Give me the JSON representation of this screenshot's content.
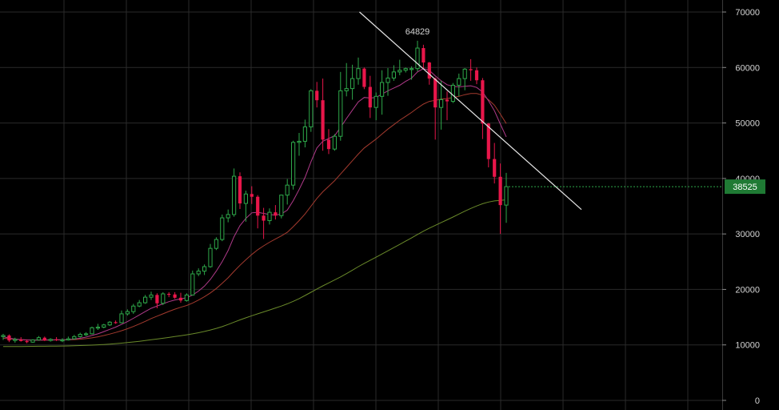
{
  "chart_data": {
    "type": "candlestick",
    "ylim": [
      0,
      70000
    ],
    "y_ticks": [
      "70000",
      "60000",
      "50000",
      "40000",
      "30000",
      "20000",
      "10000",
      "0"
    ],
    "grid": true,
    "y_axis_position": "right",
    "peak_label": "64829",
    "last_price_label": "38525",
    "last_price": 38525,
    "colors": {
      "background": "#000000",
      "grid": "#2a2a2a",
      "up": "#2ea84a",
      "down": "#e8164a",
      "price_tag": "#1f7a34",
      "ma_fast": "#b03a8a",
      "ma_mid": "#a33a2e",
      "ma_slow": "#6a8a2a",
      "trendline": "#e6e6e6"
    },
    "candles": [
      [
        11500,
        12000,
        10900,
        11700
      ],
      [
        11700,
        11900,
        10500,
        10800
      ],
      [
        10800,
        11300,
        10400,
        11000
      ],
      [
        11000,
        11400,
        10600,
        10700
      ],
      [
        10700,
        11000,
        10300,
        10500
      ],
      [
        10500,
        11000,
        10400,
        10900
      ],
      [
        10900,
        11600,
        10800,
        11300
      ],
      [
        11300,
        11500,
        10700,
        10800
      ],
      [
        10800,
        11200,
        10600,
        11000
      ],
      [
        11000,
        11400,
        10700,
        10900
      ],
      [
        10900,
        11200,
        10500,
        10900
      ],
      [
        10900,
        11500,
        10800,
        11100
      ],
      [
        11100,
        11800,
        11000,
        11500
      ],
      [
        11500,
        12200,
        11300,
        11900
      ],
      [
        11900,
        12300,
        11600,
        12000
      ],
      [
        12000,
        13300,
        11900,
        13100
      ],
      [
        13100,
        13800,
        12700,
        13200
      ],
      [
        13200,
        13800,
        13000,
        13600
      ],
      [
        13600,
        14300,
        13400,
        14100
      ],
      [
        14100,
        14400,
        13800,
        14000
      ],
      [
        14000,
        16200,
        13900,
        15600
      ],
      [
        15600,
        16400,
        15300,
        16000
      ],
      [
        16000,
        17400,
        15600,
        17000
      ],
      [
        17000,
        18100,
        16800,
        17600
      ],
      [
        17600,
        19000,
        17400,
        18600
      ],
      [
        18600,
        19600,
        18100,
        19000
      ],
      [
        19000,
        19300,
        16600,
        17500
      ],
      [
        17500,
        19500,
        17200,
        19200
      ],
      [
        19200,
        19500,
        18600,
        19100
      ],
      [
        19100,
        19500,
        18300,
        18500
      ],
      [
        18500,
        19400,
        17600,
        18000
      ],
      [
        18000,
        19300,
        17800,
        19000
      ],
      [
        19000,
        23400,
        18900,
        22800
      ],
      [
        22800,
        23800,
        22400,
        23300
      ],
      [
        23300,
        24500,
        22600,
        24100
      ],
      [
        24100,
        28200,
        23900,
        27400
      ],
      [
        27400,
        29400,
        27100,
        29000
      ],
      [
        29000,
        33500,
        28700,
        32900
      ],
      [
        32900,
        34400,
        32100,
        33500
      ],
      [
        33500,
        41800,
        33100,
        40400
      ],
      [
        40400,
        41100,
        34500,
        35500
      ],
      [
        35500,
        37800,
        32200,
        37200
      ],
      [
        37200,
        38600,
        35400,
        36700
      ],
      [
        36700,
        37000,
        31000,
        33300
      ],
      [
        33300,
        34700,
        29100,
        32400
      ],
      [
        32400,
        34600,
        31700,
        33900
      ],
      [
        33900,
        35200,
        32600,
        33300
      ],
      [
        33300,
        37100,
        32800,
        37000
      ],
      [
        37000,
        39900,
        35300,
        38800
      ],
      [
        38800,
        46800,
        38000,
        46500
      ],
      [
        46500,
        48200,
        44100,
        46700
      ],
      [
        46700,
        50600,
        45600,
        49300
      ],
      [
        49300,
        56100,
        48400,
        55800
      ],
      [
        55800,
        57400,
        52800,
        54100
      ],
      [
        54100,
        58000,
        45000,
        47000
      ],
      [
        47000,
        48900,
        44400,
        45300
      ],
      [
        45300,
        48000,
        45000,
        47600
      ],
      [
        47600,
        59200,
        46800,
        55800
      ],
      [
        55800,
        60800,
        54800,
        56200
      ],
      [
        56200,
        60500,
        54200,
        58000
      ],
      [
        58000,
        61800,
        56900,
        59800
      ],
      [
        59800,
        60000,
        56100,
        56500
      ],
      [
        56500,
        58500,
        50900,
        52800
      ],
      [
        52800,
        55500,
        50500,
        54800
      ],
      [
        54800,
        59500,
        51500,
        57300
      ],
      [
        57300,
        59900,
        54900,
        58100
      ],
      [
        58100,
        60400,
        57600,
        59200
      ],
      [
        59200,
        61400,
        58600,
        59500
      ],
      [
        59500,
        60000,
        59100,
        59800
      ],
      [
        59800,
        60200,
        57800,
        59800
      ],
      [
        59800,
        64829,
        59300,
        63500
      ],
      [
        63500,
        64100,
        59800,
        60900
      ],
      [
        60900,
        61000,
        56900,
        58000
      ],
      [
        58000,
        58200,
        47000,
        52800
      ],
      [
        52800,
        57600,
        48800,
        54200
      ],
      [
        54200,
        55700,
        50500,
        53900
      ],
      [
        53900,
        57200,
        53600,
        56800
      ],
      [
        56800,
        58900,
        54800,
        58000
      ],
      [
        58000,
        59900,
        55900,
        59700
      ],
      [
        59700,
        61500,
        57600,
        59500
      ],
      [
        59500,
        60000,
        57000,
        57700
      ],
      [
        57700,
        58100,
        47100,
        49900
      ],
      [
        49900,
        50000,
        42000,
        43500
      ],
      [
        43500,
        46400,
        39100,
        40300
      ],
      [
        40300,
        42700,
        30000,
        35200
      ],
      [
        35200,
        41000,
        32000,
        38525
      ]
    ],
    "ma_fast": [
      11500,
      11200,
      11050,
      10950,
      10900,
      10850,
      10850,
      10900,
      10900,
      10920,
      10930,
      10950,
      11050,
      11200,
      11400,
      11700,
      12000,
      12400,
      12800,
      13200,
      13700,
      14200,
      14800,
      15400,
      16000,
      16600,
      17000,
      17400,
      17800,
      18100,
      18300,
      18500,
      19000,
      19700,
      20600,
      21800,
      23300,
      25000,
      27000,
      29500,
      31500,
      32800,
      33800,
      33900,
      33700,
      33500,
      33400,
      33600,
      34300,
      36000,
      38000,
      40200,
      43000,
      45500,
      46700,
      47200,
      47700,
      49200,
      50800,
      52300,
      53800,
      54600,
      54500,
      54600,
      55200,
      55800,
      56300,
      56800,
      57500,
      58100,
      59200,
      59800,
      59500,
      58500,
      57600,
      56900,
      56600,
      56500,
      56600,
      56700,
      56400,
      55600,
      54000,
      52200,
      49800,
      47500
    ],
    "ma_mid": [
      11200,
      11100,
      11000,
      10950,
      10900,
      10880,
      10870,
      10870,
      10880,
      10890,
      10900,
      10920,
      10960,
      11030,
      11130,
      11270,
      11460,
      11690,
      11950,
      12240,
      12560,
      12920,
      13320,
      13770,
      14250,
      14750,
      15180,
      15600,
      16030,
      16440,
      16780,
      17100,
      17550,
      18080,
      18680,
      19370,
      20170,
      21100,
      22100,
      23250,
      24350,
      25350,
      26300,
      27150,
      27850,
      28500,
      29100,
      29650,
      30300,
      31300,
      32400,
      33600,
      35000,
      36400,
      37600,
      38600,
      39600,
      40800,
      42000,
      43200,
      44400,
      45500,
      46300,
      47100,
      48000,
      48900,
      49700,
      50500,
      51200,
      51900,
      52700,
      53400,
      53900,
      54100,
      54300,
      54400,
      54600,
      54800,
      55100,
      55300,
      55300,
      55000,
      54200,
      53200,
      51600,
      49900
    ],
    "ma_slow": [
      9700,
      9700,
      9710,
      9720,
      9730,
      9740,
      9750,
      9760,
      9770,
      9780,
      9800,
      9820,
      9850,
      9880,
      9920,
      9960,
      10020,
      10080,
      10150,
      10230,
      10320,
      10420,
      10530,
      10650,
      10780,
      10920,
      11060,
      11200,
      11350,
      11500,
      11660,
      11820,
      12000,
      12200,
      12430,
      12680,
      12970,
      13300,
      13680,
      14100,
      14500,
      14880,
      15250,
      15600,
      15950,
      16300,
      16650,
      17000,
      17400,
      17850,
      18350,
      18900,
      19480,
      20080,
      20640,
      21180,
      21700,
      22260,
      22850,
      23470,
      24100,
      24700,
      25250,
      25800,
      26380,
      26960,
      27540,
      28120,
      28700,
      29280,
      29900,
      30500,
      31050,
      31550,
      32050,
      32550,
      33050,
      33580,
      34100,
      34600,
      35050,
      35450,
      35750,
      35950,
      36050,
      36150
    ],
    "trendline": {
      "from": [
        60.2,
        70000
      ],
      "to": [
        97.7,
        34400
      ]
    }
  }
}
